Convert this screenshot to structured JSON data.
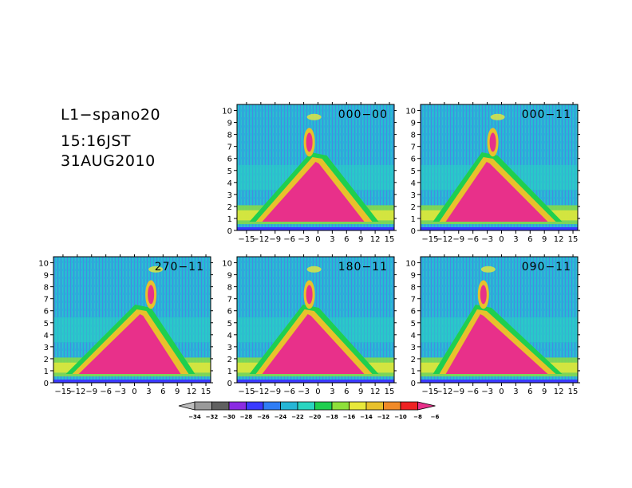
{
  "header": {
    "station": "L1−spano20",
    "time": "15:16JST",
    "date": "31AUG2010"
  },
  "chart_data": {
    "type": "heatmap",
    "panels": [
      {
        "label": "000−00"
      },
      {
        "label": "000−11"
      },
      {
        "label": "270−11"
      },
      {
        "label": "180−11"
      },
      {
        "label": "090−11"
      }
    ],
    "xlim": [
      -17,
      16
    ],
    "ylim": [
      0,
      10.5
    ],
    "x_ticks": [
      -15,
      -12,
      -9,
      -6,
      -3,
      0,
      3,
      6,
      9,
      12,
      15
    ],
    "x_tick_labels": [
      "−15",
      "−12",
      "−9",
      "−6",
      "−3",
      "0",
      "3",
      "6",
      "9",
      "12",
      "15"
    ],
    "y_ticks": [
      0,
      1,
      2,
      3,
      4,
      5,
      6,
      7,
      8,
      9,
      10
    ],
    "y_tick_labels": [
      "0",
      "1",
      "2",
      "3",
      "4",
      "5",
      "6",
      "7",
      "8",
      "9",
      "10"
    ],
    "colorbar": {
      "levels": [
        -34,
        -32,
        -30,
        -28,
        -26,
        -24,
        -22,
        -20,
        -18,
        -16,
        -14,
        -12,
        -10,
        -8,
        -6
      ],
      "level_labels": [
        "−34",
        "−32",
        "−30",
        "−28",
        "−26",
        "−24",
        "−22",
        "−20",
        "−18",
        "−16",
        "−14",
        "−12",
        "−10",
        "−8",
        "−6"
      ],
      "colors": [
        "#bdbdbd",
        "#9a9a9a",
        "#606060",
        "#8a2be2",
        "#3a3aff",
        "#2f7df5",
        "#26b6d6",
        "#2ad5c0",
        "#1fcf4f",
        "#8ee03a",
        "#e8e83a",
        "#e8c12c",
        "#f08a28",
        "#ee2222",
        "#e8308a"
      ]
    }
  }
}
